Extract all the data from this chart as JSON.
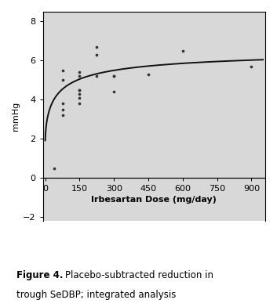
{
  "scatter_x": [
    37.5,
    75,
    75,
    75,
    75,
    75,
    150,
    150,
    150,
    150,
    150,
    150,
    150,
    225,
    225,
    225,
    300,
    300,
    300,
    450,
    600,
    900
  ],
  "scatter_y": [
    0.5,
    3.8,
    5.0,
    5.5,
    3.5,
    3.2,
    4.1,
    4.3,
    5.2,
    5.4,
    4.5,
    3.8,
    4.5,
    6.7,
    6.3,
    5.2,
    5.2,
    4.4,
    5.2,
    5.3,
    6.5,
    5.7
  ],
  "curve_emax": 4.8,
  "curve_ed50": 55,
  "curve_hill": 0.65,
  "curve_baseline": 1.9,
  "xlim": [
    -10,
    960
  ],
  "ylim": [
    -2.2,
    8.5
  ],
  "xticks": [
    0,
    150,
    300,
    450,
    600,
    750,
    900
  ],
  "xtick_labels": [
    "0",
    "150",
    "300",
    "450",
    "600",
    "750",
    "900"
  ],
  "yticks": [
    -2,
    0,
    2,
    4,
    6,
    8
  ],
  "xlabel": "Irbesartan Dose (mg/day)",
  "ylabel": "mmHg",
  "caption_bold": "Figure 4.",
  "caption_rest": "  Placebo-subtracted reduction in\ntrough SeDBP; integrated analysis",
  "dot_color": "#333333",
  "line_color": "#111111",
  "background_color": "#d8d8d8",
  "dot_size": 7,
  "line_width": 1.4,
  "tick_fontsize": 8,
  "label_fontsize": 8,
  "caption_fontsize": 8.5
}
